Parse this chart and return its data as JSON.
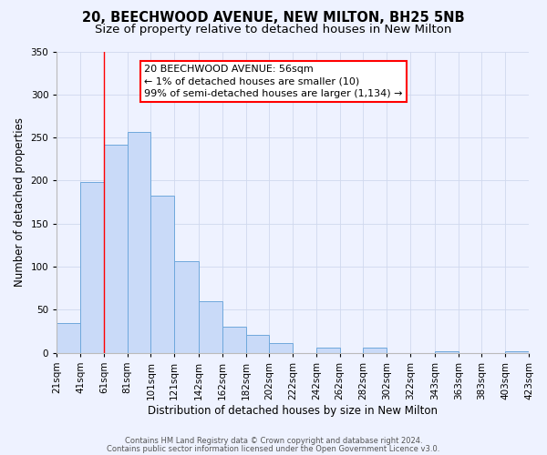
{
  "title": "20, BEECHWOOD AVENUE, NEW MILTON, BH25 5NB",
  "subtitle": "Size of property relative to detached houses in New Milton",
  "xlabel": "Distribution of detached houses by size in New Milton",
  "ylabel": "Number of detached properties",
  "bar_left_edges": [
    21,
    41,
    61,
    81,
    101,
    121,
    142,
    162,
    182,
    202,
    222,
    242,
    262,
    282,
    302,
    322,
    343,
    363,
    383,
    403
  ],
  "bar_widths": [
    20,
    20,
    20,
    20,
    20,
    21,
    20,
    20,
    20,
    20,
    20,
    20,
    20,
    20,
    20,
    21,
    20,
    20,
    20,
    20
  ],
  "bar_heights": [
    35,
    198,
    242,
    257,
    183,
    106,
    60,
    30,
    21,
    11,
    0,
    6,
    0,
    6,
    0,
    0,
    2,
    0,
    0,
    2
  ],
  "bar_facecolor": "#c9daf8",
  "bar_edgecolor": "#6fa8dc",
  "tick_labels": [
    "21sqm",
    "41sqm",
    "61sqm",
    "81sqm",
    "101sqm",
    "121sqm",
    "142sqm",
    "162sqm",
    "182sqm",
    "202sqm",
    "222sqm",
    "242sqm",
    "262sqm",
    "282sqm",
    "302sqm",
    "322sqm",
    "343sqm",
    "363sqm",
    "383sqm",
    "403sqm",
    "423sqm"
  ],
  "ylim": [
    0,
    350
  ],
  "yticks": [
    0,
    50,
    100,
    150,
    200,
    250,
    300,
    350
  ],
  "redline_x": 61,
  "annotation_title": "20 BEECHWOOD AVENUE: 56sqm",
  "annotation_line1": "← 1% of detached houses are smaller (10)",
  "annotation_line2": "99% of semi-detached houses are larger (1,134) →",
  "footer1": "Contains HM Land Registry data © Crown copyright and database right 2024.",
  "footer2": "Contains public sector information licensed under the Open Government Licence v3.0.",
  "bg_color": "#eef2ff",
  "grid_color": "#d0d8ee",
  "title_fontsize": 10.5,
  "subtitle_fontsize": 9.5,
  "axis_label_fontsize": 8.5,
  "tick_fontsize": 7.5,
  "footer_fontsize": 6.0
}
